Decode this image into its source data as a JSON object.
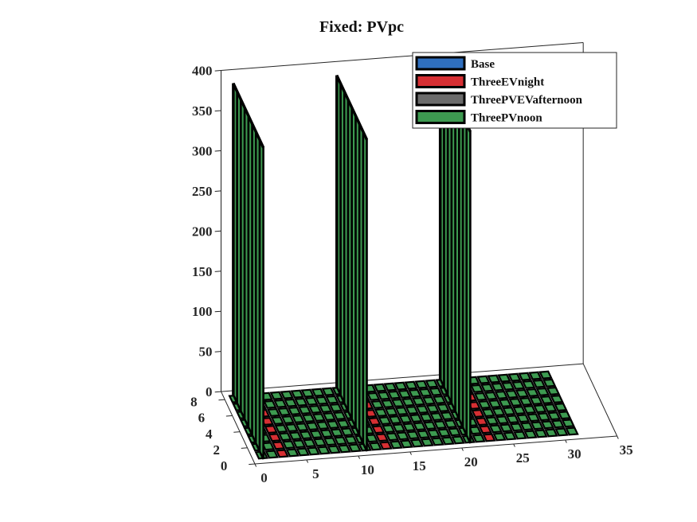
{
  "chart_data": {
    "type": "bar3",
    "title": "Fixed: PVpc",
    "xlabel": "",
    "ylabel": "",
    "zlabel": "",
    "xlim": [
      0,
      35
    ],
    "ylim": [
      0,
      9
    ],
    "zlim": [
      0,
      400
    ],
    "x_ticks": [
      "0",
      "5",
      "10",
      "15",
      "20",
      "25",
      "30",
      "35"
    ],
    "y_ticks": [
      "0",
      "2",
      "4",
      "6",
      "8"
    ],
    "z_ticks": [
      "0",
      "50",
      "100",
      "150",
      "200",
      "250",
      "300",
      "350",
      "400"
    ],
    "grid": false,
    "legend_position": "top-right",
    "bar_period": 10,
    "bar_offsets": [
      0,
      10,
      20
    ],
    "series": [
      {
        "name": "Base",
        "color": "#2f6fbf",
        "values": [
          0,
          0,
          0,
          0,
          0,
          0,
          0,
          0
        ]
      },
      {
        "name": "ThreeEVnight",
        "color": "#d62f33",
        "values": [
          0,
          0,
          0,
          0,
          0,
          0,
          0,
          0
        ]
      },
      {
        "name": "ThreePVEVafternoon",
        "color": "#6b6b6b",
        "values": [
          0,
          0,
          0,
          0,
          0,
          0,
          0,
          0
        ]
      },
      {
        "name": "ThreePVnoon",
        "color": "#3d9a50",
        "values": [
          388,
          388,
          388,
          388,
          388,
          388,
          388,
          388
        ]
      }
    ]
  }
}
